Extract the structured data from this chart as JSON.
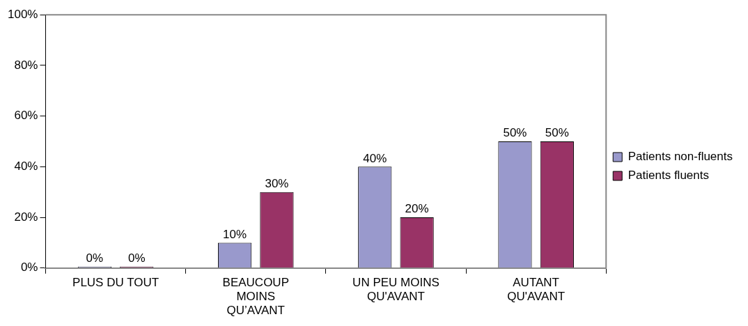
{
  "chart_data": {
    "type": "bar",
    "categories": [
      "PLUS DU TOUT",
      "BEAUCOUP MOINS QU’AVANT",
      "UN PEU MOINS QU'AVANT",
      "AUTANT QU'AVANT"
    ],
    "series": [
      {
        "name": "Patients non-fluents",
        "color": "#9999cc",
        "values": [
          0,
          10,
          40,
          50
        ],
        "value_labels": [
          "0%",
          "10%",
          "40%",
          "50%"
        ]
      },
      {
        "name": "Patients fluents",
        "color": "#993366",
        "values": [
          0,
          30,
          20,
          50
        ],
        "value_labels": [
          "0%",
          "30%",
          "20%",
          "50%"
        ]
      }
    ],
    "ylim": [
      0,
      100
    ],
    "yticks": [
      {
        "value": 0,
        "label": "0%"
      },
      {
        "value": 20,
        "label": "20%"
      },
      {
        "value": 40,
        "label": "40%"
      },
      {
        "value": 60,
        "label": "60%"
      },
      {
        "value": 80,
        "label": "80%"
      },
      {
        "value": 100,
        "label": "100%"
      }
    ],
    "grid": false,
    "legend": "right"
  }
}
